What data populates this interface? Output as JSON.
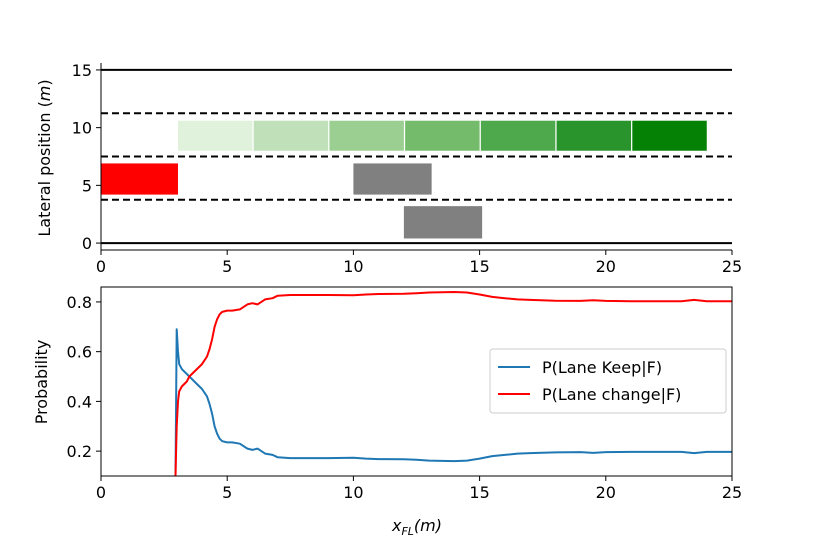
{
  "chart_data": [
    {
      "type": "scatter",
      "ylabel_prefix": "Lateral position (",
      "ylabel_unit": "m",
      "ylabel_suffix": ")",
      "xlim": [
        0,
        25
      ],
      "ylim": [
        -0.6,
        15.6
      ],
      "xticks": [
        "0",
        "5",
        "10",
        "15",
        "20",
        "25"
      ],
      "yticks": [
        "0",
        "5",
        "10",
        "15"
      ],
      "lane_lines": [
        {
          "y": 0,
          "style": "solid"
        },
        {
          "y": 3.75,
          "style": "dashed"
        },
        {
          "y": 7.5,
          "style": "dashed"
        },
        {
          "y": 11.25,
          "style": "dashed"
        },
        {
          "y": 15,
          "style": "solid"
        }
      ],
      "vehicles": [
        {
          "name": "ego",
          "x0": 0,
          "x1": 3.05,
          "y0": 4.2,
          "y1": 6.9,
          "color": "#ff0000"
        },
        {
          "name": "obstacle-1",
          "x0": 10,
          "x1": 13.1,
          "y0": 4.2,
          "y1": 6.9,
          "color": "#808080"
        },
        {
          "name": "obstacle-2",
          "x0": 12,
          "x1": 15.1,
          "y0": 0.4,
          "y1": 3.2,
          "color": "#808080"
        }
      ],
      "trajectory_boxes": [
        {
          "x0": 3.05,
          "x1": 6.0,
          "y0": 8.0,
          "y1": 10.6,
          "color": "#e0f2dc"
        },
        {
          "x0": 6.05,
          "x1": 9.0,
          "y0": 8.0,
          "y1": 10.6,
          "color": "#bfe0b8"
        },
        {
          "x0": 9.05,
          "x1": 12.0,
          "y0": 8.0,
          "y1": 10.6,
          "color": "#9bcf92"
        },
        {
          "x0": 12.05,
          "x1": 15.0,
          "y0": 8.0,
          "y1": 10.6,
          "color": "#74bc6c"
        },
        {
          "x0": 15.05,
          "x1": 18.0,
          "y0": 8.0,
          "y1": 10.6,
          "color": "#4ea84c"
        },
        {
          "x0": 18.05,
          "x1": 21.0,
          "y0": 8.0,
          "y1": 10.6,
          "color": "#2a942c"
        },
        {
          "x0": 21.05,
          "x1": 24.0,
          "y0": 8.0,
          "y1": 10.6,
          "color": "#058205"
        }
      ]
    },
    {
      "type": "line",
      "ylabel": "Probability",
      "xlabel_var": "x",
      "xlabel_sub": "FL",
      "xlabel_unit": "(m)",
      "xlim": [
        0,
        25
      ],
      "ylim": [
        0.1,
        0.86
      ],
      "xticks": [
        "0",
        "5",
        "10",
        "15",
        "20",
        "25"
      ],
      "yticks": [
        "0.2",
        "0.4",
        "0.6",
        "0.8"
      ],
      "ytick_values": [
        0.2,
        0.4,
        0.6,
        0.8
      ],
      "legend_position": "center-right",
      "series": [
        {
          "name": "P(Lane Keep|F)",
          "color": "#1f77b4",
          "x": [
            2.95,
            3.0,
            3.05,
            3.1,
            3.2,
            3.3,
            3.4,
            3.5,
            3.6,
            3.8,
            4.0,
            4.2,
            4.3,
            4.4,
            4.5,
            4.6,
            4.7,
            4.8,
            5.0,
            5.2,
            5.5,
            5.8,
            6.0,
            6.2,
            6.5,
            6.8,
            7.0,
            7.5,
            8.0,
            9.0,
            10.0,
            10.5,
            11.0,
            12.0,
            12.5,
            13.0,
            14.0,
            14.5,
            15.0,
            15.5,
            16.0,
            16.5,
            17.0,
            18.0,
            19.0,
            19.5,
            20.0,
            21.0,
            22.0,
            23.0,
            23.5,
            24.0,
            25.0
          ],
          "values": [
            0.1,
            0.69,
            0.6,
            0.55,
            0.53,
            0.52,
            0.51,
            0.5,
            0.49,
            0.47,
            0.45,
            0.42,
            0.39,
            0.35,
            0.3,
            0.27,
            0.25,
            0.24,
            0.235,
            0.235,
            0.23,
            0.21,
            0.205,
            0.21,
            0.19,
            0.185,
            0.175,
            0.172,
            0.172,
            0.172,
            0.173,
            0.17,
            0.168,
            0.167,
            0.165,
            0.162,
            0.16,
            0.162,
            0.17,
            0.18,
            0.185,
            0.19,
            0.192,
            0.195,
            0.196,
            0.193,
            0.196,
            0.197,
            0.197,
            0.197,
            0.192,
            0.197,
            0.197
          ]
        },
        {
          "name": "P(Lane change|F)",
          "color": "#ff0000",
          "x": [
            2.95,
            3.0,
            3.05,
            3.1,
            3.2,
            3.3,
            3.4,
            3.5,
            3.6,
            3.8,
            4.0,
            4.2,
            4.3,
            4.4,
            4.5,
            4.6,
            4.7,
            4.8,
            5.0,
            5.2,
            5.5,
            5.8,
            6.0,
            6.2,
            6.5,
            6.8,
            7.0,
            7.5,
            8.0,
            9.0,
            10.0,
            10.5,
            11.0,
            12.0,
            12.5,
            13.0,
            14.0,
            14.5,
            15.0,
            15.5,
            16.0,
            16.5,
            17.0,
            18.0,
            19.0,
            19.5,
            20.0,
            21.0,
            22.0,
            23.0,
            23.5,
            24.0,
            25.0
          ],
          "values": [
            0.1,
            0.3,
            0.4,
            0.44,
            0.46,
            0.47,
            0.48,
            0.5,
            0.51,
            0.53,
            0.55,
            0.58,
            0.61,
            0.65,
            0.7,
            0.73,
            0.75,
            0.76,
            0.765,
            0.765,
            0.77,
            0.79,
            0.795,
            0.79,
            0.81,
            0.815,
            0.825,
            0.828,
            0.828,
            0.828,
            0.827,
            0.83,
            0.832,
            0.833,
            0.835,
            0.838,
            0.84,
            0.838,
            0.83,
            0.82,
            0.815,
            0.81,
            0.808,
            0.805,
            0.804,
            0.807,
            0.804,
            0.803,
            0.803,
            0.803,
            0.808,
            0.803,
            0.803
          ]
        }
      ]
    }
  ]
}
